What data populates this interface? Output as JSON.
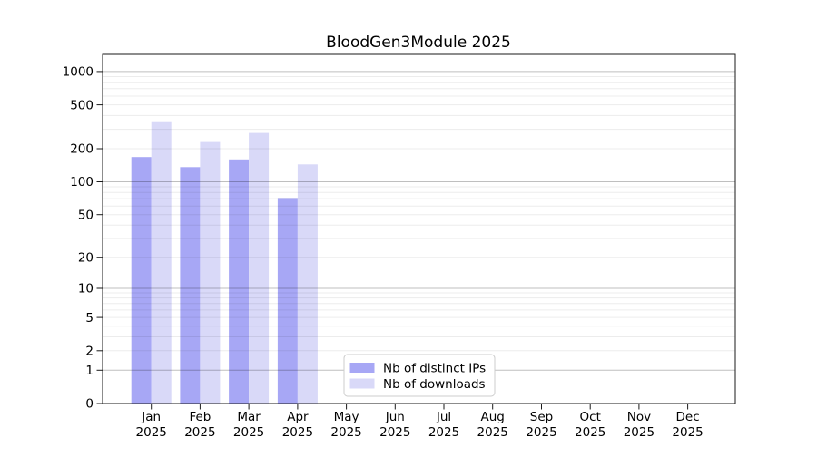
{
  "chart_data": {
    "type": "bar",
    "title": "BloodGen3Module 2025",
    "xlabel": "",
    "ylabel": "",
    "x_year_line": "2025",
    "categories": [
      "Jan",
      "Feb",
      "Mar",
      "Apr",
      "May",
      "Jun",
      "Jul",
      "Aug",
      "Sep",
      "Oct",
      "Nov",
      "Dec"
    ],
    "series": [
      {
        "name": "Nb of distinct IPs",
        "color": "#a7a7f5",
        "values": [
          168,
          136,
          160,
          71,
          null,
          null,
          null,
          null,
          null,
          null,
          null,
          null
        ]
      },
      {
        "name": "Nb of downloads",
        "color": "#d9d9f8",
        "values": [
          355,
          230,
          278,
          144,
          null,
          null,
          null,
          null,
          null,
          null,
          null,
          null
        ]
      }
    ],
    "y_ticks": [
      0,
      1,
      2,
      5,
      10,
      20,
      50,
      100,
      200,
      500,
      1000
    ],
    "y_scale": "log10(value+1)",
    "ylim": [
      0,
      1430
    ],
    "grid": "horizontal, log minor + decade major",
    "legend_position": "lower-center-left inside plot",
    "colors": {
      "background": "#ffffff",
      "spine": "#1a1a1a",
      "grid_major": "rgba(0,0,0,0.25)",
      "grid_minor": "rgba(0,0,0,0.075)",
      "legend_border": "#cccccc",
      "legend_fill": "#ffffff",
      "text": "#000000"
    }
  }
}
